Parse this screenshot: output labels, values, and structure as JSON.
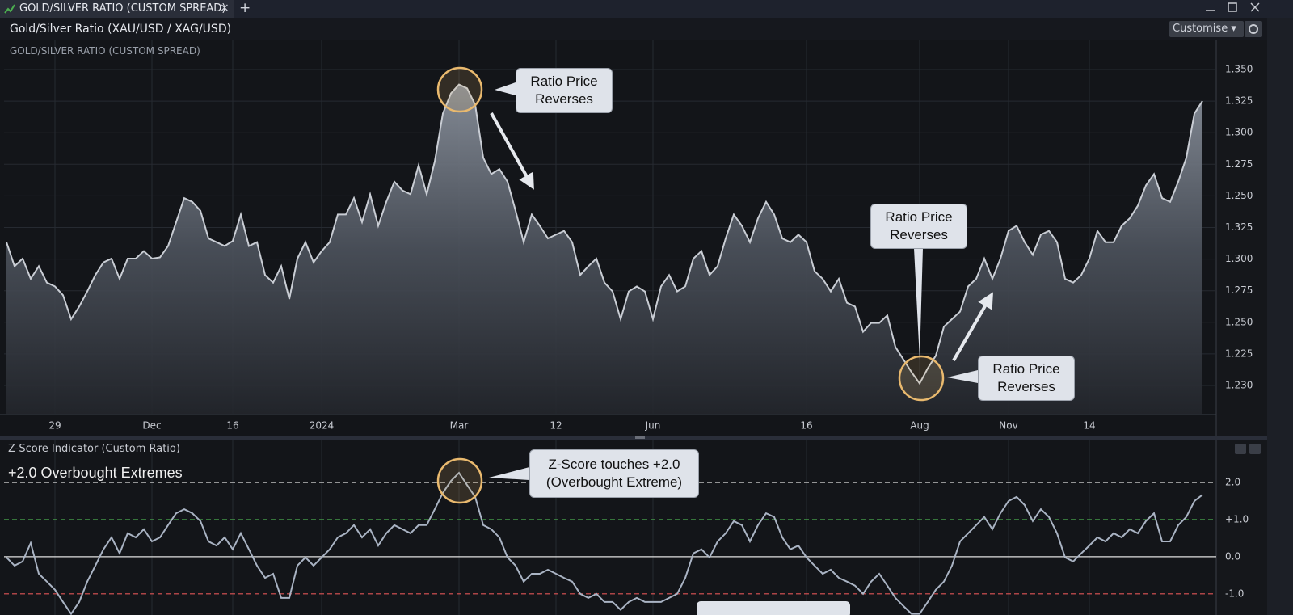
{
  "tab": {
    "title": "GOLD/SILVER RATIO (CUSTOM SPREAD)",
    "close": "×",
    "add": "+"
  },
  "header": {
    "title": "Gold/Silver Ratio (XAU/USD / XAG/USD)",
    "button": "Customise"
  },
  "chart_data": [
    {
      "type": "area",
      "title": "GOLD/SILVER RATIO (CUSTOM SPREAD)",
      "color": "#c9cdd4",
      "ylim": [
        1.077,
        1.373
      ],
      "y_labels": [
        "1.350",
        "1.325",
        "1.300",
        "1.275",
        "1.250",
        "1.325",
        "1.300",
        "1.275",
        "1.250",
        "1.225",
        "1.230"
      ],
      "categories": [
        null,
        null,
        null,
        null,
        null,
        null,
        "29",
        null,
        null,
        null,
        null,
        null,
        null,
        null,
        null,
        null,
        null,
        null,
        "Dec",
        null,
        null,
        null,
        null,
        null,
        null,
        null,
        null,
        null,
        "16",
        null,
        null,
        null,
        null,
        null,
        null,
        null,
        null,
        null,
        null,
        "2024",
        null,
        null,
        null,
        null,
        null,
        null,
        null,
        null,
        null,
        null,
        null,
        null,
        null,
        null,
        null,
        null,
        "Mar",
        null,
        null,
        null,
        null,
        null,
        null,
        null,
        null,
        null,
        null,
        null,
        "12",
        null,
        null,
        null,
        null,
        null,
        null,
        null,
        null,
        null,
        null,
        null,
        "Jun",
        null,
        null,
        null,
        null,
        null,
        null,
        null,
        null,
        null,
        null,
        null,
        null,
        null,
        null,
        null,
        null,
        null,
        null,
        "16",
        null,
        null,
        null,
        null,
        null,
        null,
        null,
        null,
        null,
        null,
        null,
        null,
        null,
        "Aug",
        null,
        null,
        null,
        null,
        null,
        null,
        null,
        null,
        null,
        null,
        "Nov",
        null,
        null,
        null,
        null,
        null,
        null,
        null,
        null,
        null,
        "14",
        null,
        null,
        null,
        null,
        null,
        null,
        null,
        null,
        null,
        null,
        null,
        null,
        null,
        null
      ],
      "values": [
        1.213,
        1.194,
        1.2,
        1.184,
        1.194,
        1.181,
        1.178,
        1.171,
        1.152,
        1.162,
        1.174,
        1.187,
        1.197,
        1.2,
        1.184,
        1.2,
        1.2,
        1.206,
        1.2,
        1.201,
        1.21,
        1.229,
        1.248,
        1.245,
        1.238,
        1.216,
        1.213,
        1.21,
        1.214,
        1.235,
        1.21,
        1.213,
        1.187,
        1.181,
        1.194,
        1.168,
        1.2,
        1.213,
        1.197,
        1.206,
        1.213,
        1.235,
        1.235,
        1.248,
        1.229,
        1.251,
        1.226,
        1.245,
        1.261,
        1.254,
        1.251,
        1.274,
        1.251,
        1.277,
        1.315,
        1.331,
        1.338,
        1.335,
        1.322,
        1.28,
        1.267,
        1.271,
        1.261,
        1.238,
        1.213,
        1.235,
        1.226,
        1.216,
        1.219,
        1.222,
        1.213,
        1.187,
        1.194,
        1.2,
        1.181,
        1.174,
        1.152,
        1.174,
        1.178,
        1.174,
        1.152,
        1.178,
        1.187,
        1.174,
        1.178,
        1.2,
        1.206,
        1.187,
        1.194,
        1.216,
        1.235,
        1.226,
        1.213,
        1.232,
        1.245,
        1.235,
        1.216,
        1.213,
        1.219,
        1.213,
        1.19,
        1.184,
        1.174,
        1.184,
        1.165,
        1.162,
        1.142,
        1.149,
        1.149,
        1.155,
        1.13,
        1.12,
        1.11,
        1.101,
        1.113,
        1.123,
        1.146,
        1.152,
        1.158,
        1.178,
        1.184,
        1.2,
        1.184,
        1.2,
        1.222,
        1.226,
        1.213,
        1.203,
        1.219,
        1.222,
        1.213,
        1.184,
        1.181,
        1.187,
        1.2,
        1.222,
        1.213,
        1.213,
        1.226,
        1.232,
        1.242,
        1.258,
        1.267,
        1.248,
        1.245,
        1.261,
        1.28,
        1.315,
        1.325
      ],
      "annotations": [
        "Ratio Price Reverses",
        "Ratio Price Reverses",
        "Ratio Price Reverses"
      ]
    },
    {
      "type": "line",
      "title": "Z-Score Indicator (Custom Ratio)",
      "color": "#aab4c4",
      "ylim": [
        -1.57,
        2.74
      ],
      "yticks": [
        {
          "value": 2,
          "label": "2.0"
        },
        {
          "value": 1,
          "label": "+1.0"
        },
        {
          "value": 0,
          "label": "0.0"
        },
        {
          "value": -1,
          "label": "-1.0"
        }
      ],
      "tick_colors": [
        "#e0e0e0",
        "#4caf50",
        "#e0e0e0",
        "#e05555"
      ],
      "tick_dashed": [
        true,
        true,
        false,
        true
      ],
      "values": [
        -0.02,
        -0.24,
        -0.13,
        0.37,
        -0.46,
        -0.67,
        -0.89,
        -1.22,
        -1.54,
        -1.22,
        -0.67,
        -0.24,
        0.2,
        0.52,
        0.09,
        0.63,
        0.52,
        0.74,
        0.41,
        0.52,
        0.85,
        1.17,
        1.28,
        1.17,
        0.96,
        0.41,
        0.3,
        0.52,
        0.2,
        0.63,
        0.2,
        -0.24,
        -0.57,
        -0.46,
        -1.11,
        -1.11,
        -0.24,
        -0.02,
        -0.24,
        -0.02,
        0.2,
        0.52,
        0.63,
        0.85,
        0.52,
        0.74,
        0.3,
        0.63,
        0.85,
        0.74,
        0.63,
        0.85,
        0.85,
        1.28,
        1.72,
        2.04,
        2.26,
        1.93,
        1.61,
        0.85,
        0.74,
        0.52,
        -0.02,
        -0.24,
        -0.67,
        -0.46,
        -0.46,
        -0.35,
        -0.46,
        -0.57,
        -0.67,
        -1.0,
        -1.11,
        -1.0,
        -1.22,
        -1.22,
        -1.43,
        -1.22,
        -1.11,
        -1.22,
        -1.22,
        -1.22,
        -1.11,
        -1.0,
        -0.57,
        0.09,
        0.2,
        -0.02,
        0.41,
        0.63,
        0.96,
        0.85,
        0.41,
        0.85,
        1.17,
        1.07,
        0.52,
        0.2,
        0.3,
        -0.02,
        -0.24,
        -0.46,
        -0.35,
        -0.57,
        -0.67,
        -0.78,
        -1.0,
        -0.67,
        -0.46,
        -0.78,
        -1.11,
        -1.33,
        -1.54,
        -1.54,
        -1.22,
        -0.89,
        -0.67,
        -0.24,
        0.41,
        0.63,
        0.85,
        1.07,
        0.74,
        1.17,
        1.5,
        1.61,
        1.39,
        0.96,
        1.28,
        1.07,
        0.63,
        -0.02,
        -0.13,
        0.09,
        0.3,
        0.52,
        0.41,
        0.63,
        0.52,
        0.74,
        0.63,
        0.96,
        1.17,
        0.41,
        0.41,
        0.85,
        1.07,
        1.5,
        1.67
      ],
      "annotations": [
        "Z-Score touches +2.0 (Overbought Extreme)",
        "+2.0 Overbought Extremes"
      ]
    }
  ]
}
